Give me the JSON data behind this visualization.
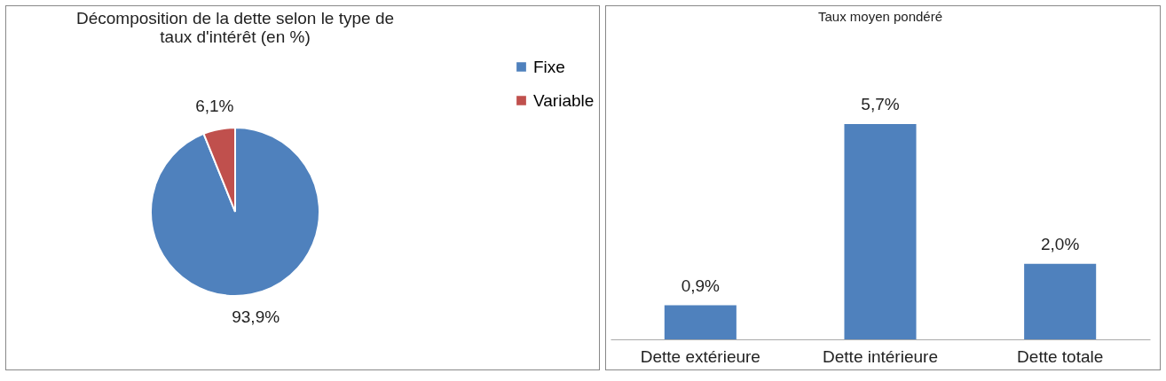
{
  "chart_data": [
    {
      "type": "pie",
      "title": "Décomposition de la dette selon le type de taux d'intérêt (en %)",
      "categories": [
        "Fixe",
        "Variable"
      ],
      "values": [
        93.9,
        6.1
      ],
      "colors": [
        "#4f81bd",
        "#c0504d"
      ],
      "value_labels": [
        "93,9%",
        "6,1%"
      ],
      "legend": "right"
    },
    {
      "type": "bar",
      "title": "Taux moyen pondéré",
      "categories": [
        "Dette extérieure",
        "Dette intérieure",
        "Dette totale"
      ],
      "values": [
        0.9,
        5.7,
        2.0
      ],
      "color": "#4f81bd",
      "value_labels": [
        "0,9%",
        "5,7%",
        "2,0%"
      ]
    }
  ]
}
